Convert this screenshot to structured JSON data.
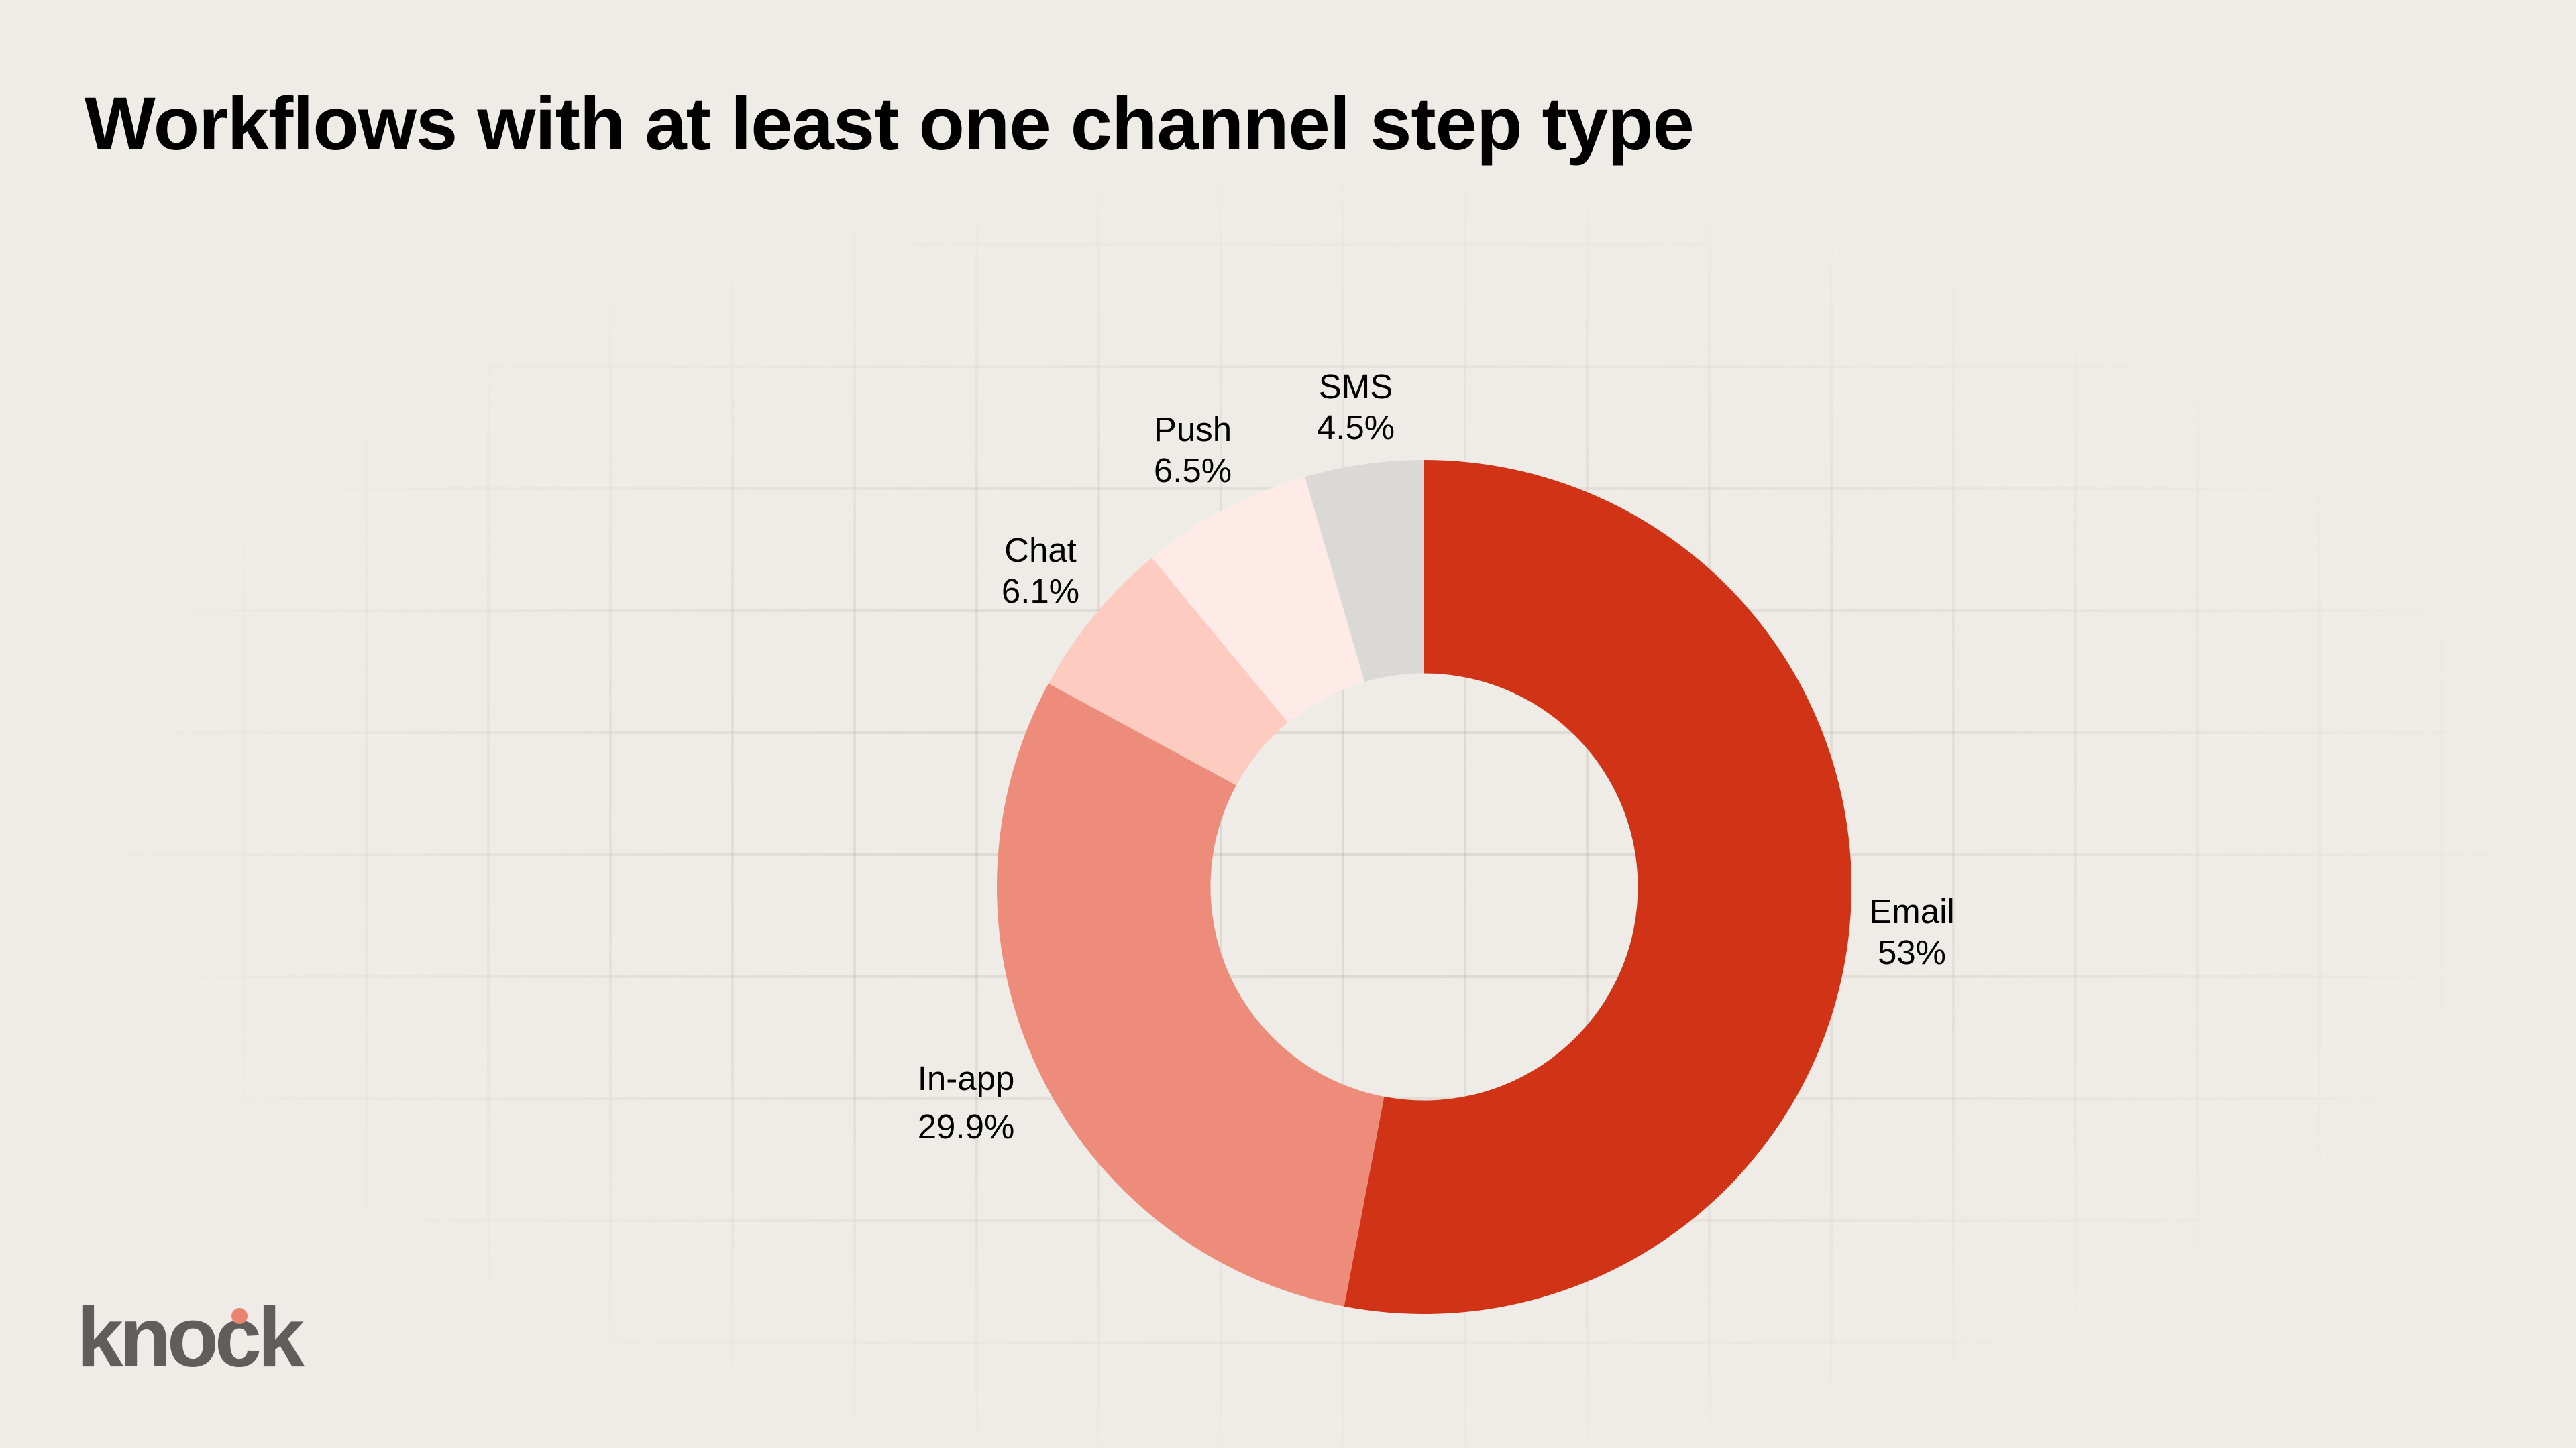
{
  "title": "Workflows with at least one channel step type",
  "brand": {
    "name": "knock",
    "dot_color": "#EC8272",
    "text_color": "#5F5E5C"
  },
  "colors": {
    "background": "#EFECE7"
  },
  "chart_data": {
    "type": "pie",
    "variant": "donut",
    "title": "Workflows with at least one channel step type",
    "start_angle": "12 o'clock, clockwise",
    "inner_radius_ratio": 0.5,
    "categories": [
      "Email",
      "In-app",
      "Chat",
      "Push",
      "SMS"
    ],
    "values": [
      53,
      29.9,
      6.1,
      6.5,
      4.5
    ],
    "value_labels": [
      "53%",
      "29.9%",
      "6.1%",
      "6.5%",
      "4.5%"
    ],
    "colors": [
      "#D13316",
      "#ED8C7B",
      "#FECBC1",
      "#FEEBE7",
      "#DBD9D5"
    ],
    "legend": "none (direct labels)",
    "grid": "decorative background grid"
  },
  "labels": {
    "email": {
      "name": "Email",
      "value": "53%"
    },
    "inapp": {
      "name": "In-app",
      "value": "29.9%"
    },
    "chat": {
      "name": "Chat",
      "value": "6.1%"
    },
    "push": {
      "name": "Push",
      "value": "6.5%"
    },
    "sms": {
      "name": "SMS",
      "value": "4.5%"
    }
  }
}
